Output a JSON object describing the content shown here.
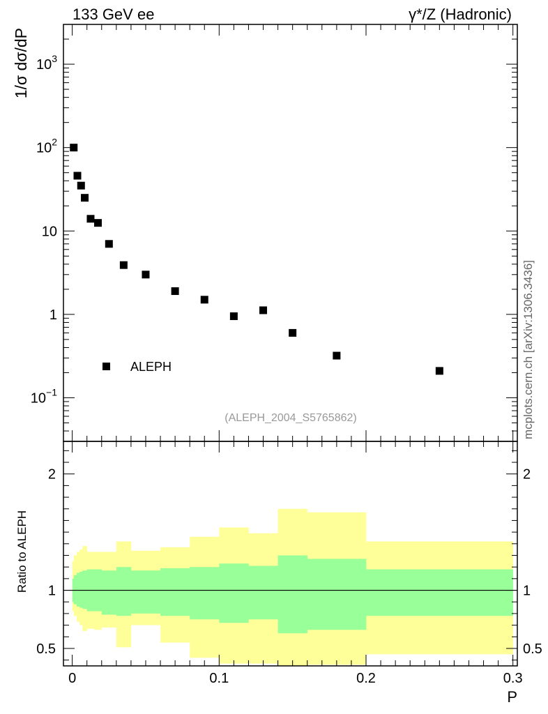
{
  "header": {
    "left_title": "133 GeV ee",
    "right_title": "γ*/Z (Hadronic)"
  },
  "watermark": "(ALEPH_2004_S5765862)",
  "side_note": "mcplots.cern.ch [arXiv:1306.3436]",
  "chart_data": [
    {
      "type": "scatter",
      "ylabel": "1/σ dσ/dP",
      "yscale": "log",
      "ylim": [
        0.03,
        3000
      ],
      "xlim": [
        -0.006,
        0.303
      ],
      "legend": {
        "label": "ALEPH",
        "placement": "bottom-left"
      },
      "y_ticks": [
        {
          "value": 0.1,
          "mantissa": "10",
          "exponent": "−1"
        },
        {
          "value": 1,
          "mantissa": "1",
          "exponent": ""
        },
        {
          "value": 10,
          "mantissa": "10",
          "exponent": ""
        },
        {
          "value": 100,
          "mantissa": "10",
          "exponent": "2"
        },
        {
          "value": 1000,
          "mantissa": "10",
          "exponent": "3"
        }
      ],
      "series": [
        {
          "name": "ALEPH",
          "color": "#000000",
          "marker": "square",
          "x": [
            0.001,
            0.0035,
            0.006,
            0.0085,
            0.0125,
            0.0175,
            0.025,
            0.035,
            0.05,
            0.07,
            0.09,
            0.11,
            0.13,
            0.15,
            0.18,
            0.25
          ],
          "y": [
            100,
            46,
            35,
            25,
            14,
            12.5,
            7,
            3.9,
            3.0,
            1.9,
            1.5,
            0.95,
            1.12,
            0.6,
            0.32,
            0.21
          ]
        }
      ]
    },
    {
      "type": "area",
      "xlabel": "P",
      "ylabel": "Ratio to ALEPH",
      "ylim": [
        0.35,
        2.28
      ],
      "xlim": [
        -0.006,
        0.303
      ],
      "x_ticks": [
        "0",
        "0.1",
        "0.2",
        "0.3"
      ],
      "y_ticks": [
        "0.5",
        "1",
        "2"
      ],
      "reference_line": 1,
      "bands": {
        "colors": {
          "outer": "#ffff99",
          "inner": "#99ff99"
        },
        "bins": [
          {
            "x0": 0.0,
            "x1": 0.001,
            "outer": [
              0.82,
              1.25
            ],
            "inner": [
              0.9,
              1.1
            ]
          },
          {
            "x0": 0.001,
            "x1": 0.003,
            "outer": [
              0.78,
              1.3
            ],
            "inner": [
              0.88,
              1.13
            ]
          },
          {
            "x0": 0.003,
            "x1": 0.005,
            "outer": [
              0.73,
              1.33
            ],
            "inner": [
              0.86,
              1.15
            ]
          },
          {
            "x0": 0.005,
            "x1": 0.007,
            "outer": [
              0.7,
              1.35
            ],
            "inner": [
              0.85,
              1.16
            ]
          },
          {
            "x0": 0.007,
            "x1": 0.01,
            "outer": [
              0.65,
              1.38
            ],
            "inner": [
              0.84,
              1.17
            ]
          },
          {
            "x0": 0.01,
            "x1": 0.015,
            "outer": [
              0.67,
              1.33
            ],
            "inner": [
              0.82,
              1.18
            ]
          },
          {
            "x0": 0.015,
            "x1": 0.02,
            "outer": [
              0.66,
              1.33
            ],
            "inner": [
              0.82,
              1.18
            ]
          },
          {
            "x0": 0.02,
            "x1": 0.03,
            "outer": [
              0.68,
              1.33
            ],
            "inner": [
              0.79,
              1.17
            ]
          },
          {
            "x0": 0.03,
            "x1": 0.04,
            "outer": [
              0.51,
              1.42
            ],
            "inner": [
              0.78,
              1.2
            ]
          },
          {
            "x0": 0.04,
            "x1": 0.06,
            "outer": [
              0.7,
              1.34
            ],
            "inner": [
              0.8,
              1.17
            ]
          },
          {
            "x0": 0.06,
            "x1": 0.08,
            "outer": [
              0.55,
              1.37
            ],
            "inner": [
              0.78,
              1.19
            ]
          },
          {
            "x0": 0.08,
            "x1": 0.1,
            "outer": [
              0.42,
              1.46
            ],
            "inner": [
              0.75,
              1.2
            ]
          },
          {
            "x0": 0.1,
            "x1": 0.12,
            "outer": [
              0.37,
              1.54
            ],
            "inner": [
              0.72,
              1.23
            ]
          },
          {
            "x0": 0.12,
            "x1": 0.14,
            "outer": [
              0.37,
              1.49
            ],
            "inner": [
              0.75,
              1.21
            ]
          },
          {
            "x0": 0.14,
            "x1": 0.16,
            "outer": [
              0.35,
              1.7
            ],
            "inner": [
              0.63,
              1.3
            ]
          },
          {
            "x0": 0.16,
            "x1": 0.2,
            "outer": [
              0.36,
              1.67
            ],
            "inner": [
              0.66,
              1.27
            ]
          },
          {
            "x0": 0.2,
            "x1": 0.3,
            "outer": [
              0.45,
              1.42
            ],
            "inner": [
              0.78,
              1.18
            ]
          }
        ]
      }
    }
  ]
}
